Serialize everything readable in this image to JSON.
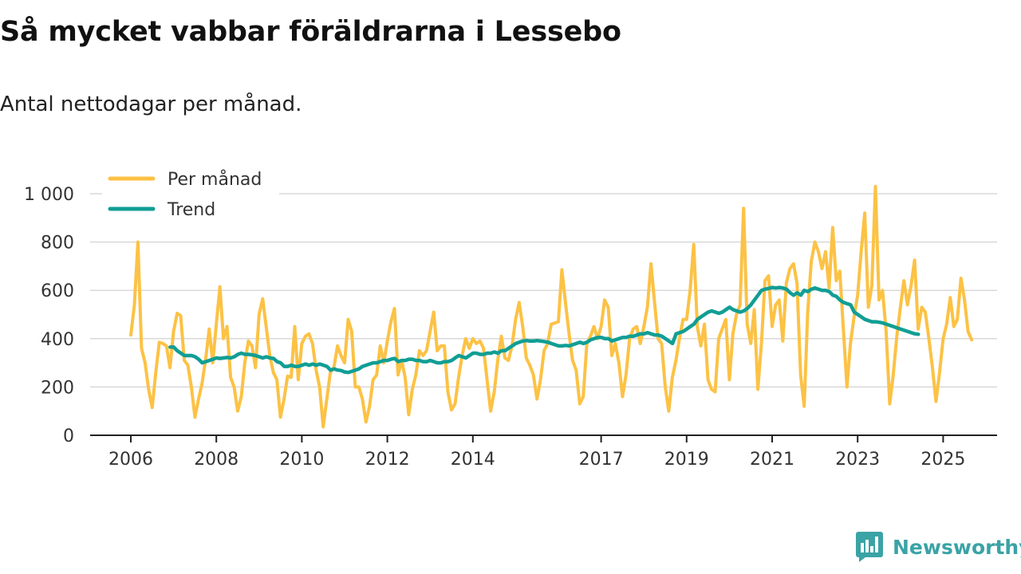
{
  "title": "Så mycket vabbar föräldrarna i Lessebo",
  "subtitle": "Antal nettodagar per månad.",
  "brand": {
    "name": "Newsworthy"
  },
  "colors": {
    "monthly": "#fcc245",
    "trend": "#119e94",
    "grid": "#d9d9d9",
    "axis": "#222222"
  },
  "chart_data": {
    "type": "line",
    "title": "Så mycket vabbar föräldrarna i Lessebo",
    "subtitle": "Antal nettodagar per månad.",
    "xlabel": "",
    "ylabel": "",
    "ylim": [
      0,
      1000
    ],
    "y_ticks": [
      0,
      200,
      400,
      600,
      800,
      1000
    ],
    "y_tick_labels": [
      "0",
      "200",
      "400",
      "600",
      "800",
      "1 000"
    ],
    "x_start": 2006,
    "x_ticks": [
      2006,
      2008,
      2010,
      2012,
      2014,
      2017,
      2019,
      2021,
      2023,
      2025
    ],
    "x_tick_labels": [
      "2006",
      "2008",
      "2010",
      "2012",
      "2014",
      "2017",
      "2019",
      "2021",
      "2023",
      "2025"
    ],
    "grid": true,
    "legend_position": "top-left",
    "series": [
      {
        "name": "Per månad",
        "color": "#fcc245",
        "start": 2006.0,
        "step": 0.08333,
        "values": [
          415,
          540,
          800,
          360,
          300,
          190,
          115,
          260,
          385,
          380,
          370,
          280,
          430,
          505,
          495,
          310,
          290,
          200,
          75,
          150,
          215,
          315,
          440,
          300,
          460,
          615,
          400,
          450,
          240,
          200,
          100,
          160,
          300,
          390,
          370,
          280,
          500,
          565,
          450,
          330,
          260,
          230,
          75,
          150,
          245,
          240,
          450,
          230,
          380,
          410,
          420,
          380,
          270,
          200,
          35,
          150,
          260,
          280,
          370,
          330,
          300,
          480,
          430,
          200,
          200,
          150,
          55,
          120,
          230,
          250,
          370,
          300,
          390,
          470,
          525,
          250,
          310,
          240,
          85,
          190,
          250,
          350,
          330,
          350,
          430,
          510,
          350,
          370,
          370,
          180,
          105,
          130,
          240,
          330,
          400,
          360,
          400,
          380,
          390,
          360,
          230,
          100,
          180,
          310,
          410,
          320,
          310,
          370,
          480,
          550,
          450,
          320,
          290,
          250,
          150,
          230,
          350,
          380,
          460,
          465,
          470,
          685,
          550,
          420,
          310,
          270,
          130,
          160,
          380,
          410,
          450,
          400,
          450,
          560,
          530,
          330,
          380,
          300,
          160,
          250,
          400,
          440,
          450,
          380,
          450,
          530,
          710,
          550,
          400,
          380,
          200,
          100,
          240,
          310,
          400,
          480,
          480,
          600,
          790,
          450,
          370,
          460,
          230,
          190,
          180,
          400,
          440,
          480,
          230,
          420,
          500,
          540,
          940,
          460,
          380,
          520,
          190,
          380,
          640,
          660,
          450,
          540,
          560,
          390,
          630,
          690,
          710,
          630,
          250,
          120,
          510,
          720,
          800,
          760,
          690,
          760,
          610,
          860,
          640,
          680,
          440,
          200,
          380,
          490,
          580,
          760,
          920,
          530,
          620,
          1030,
          560,
          600,
          430,
          130,
          250,
          410,
          530,
          640,
          540,
          620,
          725,
          440,
          530,
          510,
          400,
          280,
          140,
          260,
          400,
          460,
          570,
          450,
          480,
          650,
          560,
          430,
          395
        ]
      },
      {
        "name": "Trend",
        "color": "#119e94",
        "start": 2006.92,
        "step": 0.08333,
        "values": [
          365,
          365,
          350,
          340,
          330,
          330,
          330,
          325,
          315,
          300,
          305,
          310,
          315,
          320,
          318,
          320,
          322,
          320,
          325,
          335,
          340,
          335,
          335,
          333,
          330,
          325,
          320,
          325,
          320,
          318,
          305,
          300,
          285,
          285,
          290,
          285,
          285,
          290,
          295,
          290,
          295,
          290,
          295,
          290,
          285,
          270,
          275,
          270,
          268,
          262,
          260,
          265,
          270,
          275,
          285,
          290,
          295,
          300,
          300,
          305,
          310,
          310,
          315,
          318,
          305,
          310,
          310,
          315,
          315,
          310,
          310,
          305,
          305,
          310,
          305,
          300,
          300,
          305,
          305,
          310,
          320,
          330,
          325,
          320,
          330,
          340,
          340,
          335,
          335,
          340,
          340,
          345,
          340,
          350,
          350,
          360,
          370,
          380,
          385,
          390,
          392,
          390,
          390,
          392,
          390,
          388,
          385,
          380,
          375,
          370,
          370,
          372,
          370,
          375,
          380,
          385,
          380,
          385,
          395,
          400,
          405,
          405,
          400,
          400,
          390,
          395,
          400,
          405,
          405,
          410,
          410,
          415,
          420,
          420,
          425,
          420,
          415,
          415,
          410,
          400,
          390,
          380,
          420,
          425,
          430,
          440,
          450,
          460,
          480,
          490,
          500,
          510,
          515,
          510,
          505,
          510,
          520,
          530,
          520,
          515,
          510,
          515,
          525,
          540,
          560,
          580,
          600,
          605,
          608,
          612,
          610,
          612,
          610,
          605,
          590,
          580,
          590,
          580,
          600,
          595,
          605,
          610,
          605,
          600,
          600,
          595,
          580,
          575,
          560,
          550,
          545,
          540,
          510,
          500,
          490,
          480,
          475,
          470,
          470,
          468,
          465,
          460,
          455,
          450,
          445,
          440,
          435,
          430,
          425,
          420,
          418
        ]
      }
    ]
  }
}
